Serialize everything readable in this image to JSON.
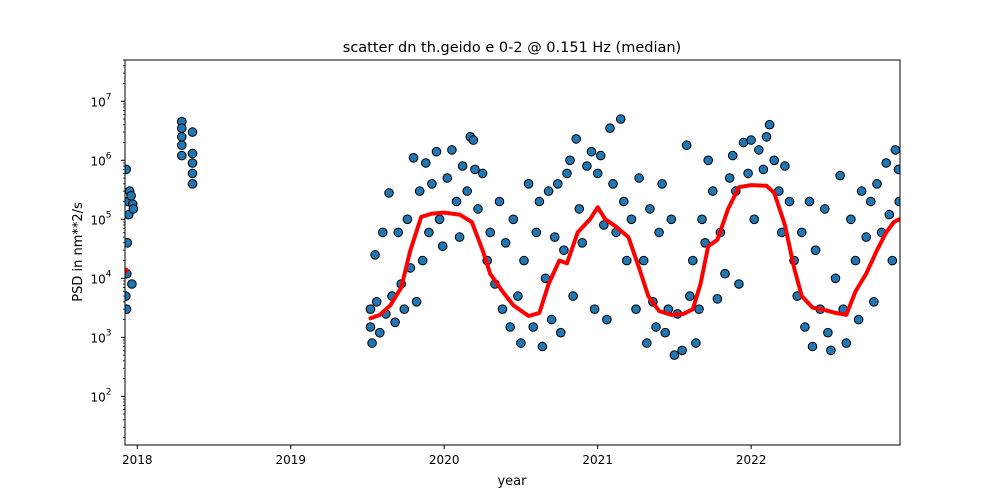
{
  "chart_data": {
    "type": "scatter",
    "title": "scatter dn th.geido e 0-2 @ 0.151 Hz (median)",
    "xlabel": "year",
    "ylabel": "PSD in nm**2/s",
    "yscale": "log",
    "xlim": [
      2017.92,
      2022.97
    ],
    "ylim": [
      15,
      50000000
    ],
    "grid": false,
    "x_ticks": [
      {
        "value": 2018,
        "label": "2018"
      },
      {
        "value": 2019,
        "label": "2019"
      },
      {
        "value": 2020,
        "label": "2020"
      },
      {
        "value": 2021,
        "label": "2021"
      },
      {
        "value": 2022,
        "label": "2022"
      }
    ],
    "y_ticks": [
      {
        "value": 100,
        "base": "10",
        "exp": "2"
      },
      {
        "value": 1000,
        "base": "10",
        "exp": "3"
      },
      {
        "value": 10000,
        "base": "10",
        "exp": "4"
      },
      {
        "value": 100000,
        "base": "10",
        "exp": "5"
      },
      {
        "value": 1000000,
        "base": "10",
        "exp": "6"
      },
      {
        "value": 10000000,
        "base": "10",
        "exp": "7"
      }
    ],
    "scatter_style": {
      "fill": "#1f77b4",
      "edge": "#000000"
    },
    "median_style": {
      "color": "#ff0000"
    },
    "scatter_points": [
      [
        2017.925,
        5000
      ],
      [
        2017.93,
        3000
      ],
      [
        2017.935,
        40000
      ],
      [
        2017.94,
        200000
      ],
      [
        2017.945,
        120000
      ],
      [
        2017.95,
        300000
      ],
      [
        2017.96,
        250000
      ],
      [
        2017.965,
        8000
      ],
      [
        2017.97,
        180000
      ],
      [
        2017.975,
        150000
      ],
      [
        2017.928,
        700000
      ],
      [
        2017.932,
        12000
      ],
      [
        2018.29,
        4500000
      ],
      [
        2018.29,
        3500000
      ],
      [
        2018.29,
        2500000
      ],
      [
        2018.29,
        1800000
      ],
      [
        2018.29,
        1200000
      ],
      [
        2018.36,
        3000000
      ],
      [
        2018.36,
        1300000
      ],
      [
        2018.36,
        900000
      ],
      [
        2018.36,
        600000
      ],
      [
        2018.36,
        400000
      ],
      [
        2019.52,
        3000
      ],
      [
        2019.52,
        1500
      ],
      [
        2019.53,
        800
      ],
      [
        2019.55,
        25000
      ],
      [
        2019.56,
        4000
      ],
      [
        2019.58,
        1200
      ],
      [
        2019.6,
        60000
      ],
      [
        2019.62,
        2500
      ],
      [
        2019.64,
        280000
      ],
      [
        2019.66,
        5000
      ],
      [
        2019.68,
        1800
      ],
      [
        2019.7,
        60000
      ],
      [
        2019.72,
        8000
      ],
      [
        2019.74,
        3000
      ],
      [
        2019.76,
        100000
      ],
      [
        2019.78,
        15000
      ],
      [
        2019.8,
        1100000
      ],
      [
        2019.82,
        4000
      ],
      [
        2019.84,
        300000
      ],
      [
        2019.86,
        20000
      ],
      [
        2019.88,
        900000
      ],
      [
        2019.9,
        60000
      ],
      [
        2019.92,
        400000
      ],
      [
        2019.95,
        1400000
      ],
      [
        2019.97,
        100000
      ],
      [
        2019.99,
        35000
      ],
      [
        2020.02,
        500000
      ],
      [
        2020.05,
        1500000
      ],
      [
        2020.08,
        200000
      ],
      [
        2020.1,
        50000
      ],
      [
        2020.12,
        800000
      ],
      [
        2020.15,
        300000
      ],
      [
        2020.17,
        2500000
      ],
      [
        2020.19,
        2200000
      ],
      [
        2020.2,
        700000
      ],
      [
        2020.22,
        150000
      ],
      [
        2020.25,
        600000
      ],
      [
        2020.28,
        20000
      ],
      [
        2020.3,
        60000
      ],
      [
        2020.33,
        8000
      ],
      [
        2020.36,
        200000
      ],
      [
        2020.38,
        3000
      ],
      [
        2020.4,
        40000
      ],
      [
        2020.43,
        1500
      ],
      [
        2020.45,
        100000
      ],
      [
        2020.48,
        5000
      ],
      [
        2020.5,
        800
      ],
      [
        2020.52,
        20000
      ],
      [
        2020.55,
        400000
      ],
      [
        2020.58,
        1500
      ],
      [
        2020.6,
        60000
      ],
      [
        2020.62,
        200000
      ],
      [
        2020.64,
        700
      ],
      [
        2020.66,
        10000
      ],
      [
        2020.68,
        300000
      ],
      [
        2020.7,
        2000
      ],
      [
        2020.72,
        50000
      ],
      [
        2020.74,
        400000
      ],
      [
        2020.76,
        1200
      ],
      [
        2020.78,
        30000
      ],
      [
        2020.8,
        600000
      ],
      [
        2020.82,
        1000000
      ],
      [
        2020.84,
        5000
      ],
      [
        2020.86,
        2300000
      ],
      [
        2020.88,
        150000
      ],
      [
        2020.9,
        40000
      ],
      [
        2020.93,
        800000
      ],
      [
        2020.96,
        1400000
      ],
      [
        2020.98,
        3000
      ],
      [
        2021.0,
        600000
      ],
      [
        2021.02,
        1200000
      ],
      [
        2021.04,
        80000
      ],
      [
        2021.06,
        2000
      ],
      [
        2021.08,
        3500000
      ],
      [
        2021.1,
        400000
      ],
      [
        2021.12,
        60000
      ],
      [
        2021.15,
        5000000
      ],
      [
        2021.17,
        200000
      ],
      [
        2021.19,
        20000
      ],
      [
        2021.22,
        100000
      ],
      [
        2021.25,
        3000
      ],
      [
        2021.27,
        500000
      ],
      [
        2021.3,
        20000
      ],
      [
        2021.32,
        800
      ],
      [
        2021.34,
        150000
      ],
      [
        2021.36,
        4000
      ],
      [
        2021.38,
        1500
      ],
      [
        2021.4,
        60000
      ],
      [
        2021.42,
        400000
      ],
      [
        2021.44,
        1200
      ],
      [
        2021.46,
        3000
      ],
      [
        2021.48,
        100000
      ],
      [
        2021.5,
        500
      ],
      [
        2021.52,
        2500
      ],
      [
        2021.55,
        600
      ],
      [
        2021.58,
        1800000
      ],
      [
        2021.6,
        5000
      ],
      [
        2021.62,
        20000
      ],
      [
        2021.64,
        800
      ],
      [
        2021.66,
        3000
      ],
      [
        2021.68,
        100000
      ],
      [
        2021.7,
        40000
      ],
      [
        2021.72,
        1000000
      ],
      [
        2021.75,
        300000
      ],
      [
        2021.78,
        4500
      ],
      [
        2021.8,
        60000
      ],
      [
        2021.83,
        12000
      ],
      [
        2021.86,
        500000
      ],
      [
        2021.88,
        1200000
      ],
      [
        2021.9,
        300000
      ],
      [
        2021.92,
        8000
      ],
      [
        2021.95,
        2000000
      ],
      [
        2021.98,
        600000
      ],
      [
        2022.0,
        2200000
      ],
      [
        2022.02,
        100000
      ],
      [
        2022.05,
        1500000
      ],
      [
        2022.08,
        700000
      ],
      [
        2022.1,
        2500000
      ],
      [
        2022.12,
        4000000
      ],
      [
        2022.15,
        1000000
      ],
      [
        2022.18,
        300000
      ],
      [
        2022.2,
        60000
      ],
      [
        2022.22,
        800000
      ],
      [
        2022.25,
        200000
      ],
      [
        2022.28,
        20000
      ],
      [
        2022.3,
        5000
      ],
      [
        2022.33,
        60000
      ],
      [
        2022.35,
        1500
      ],
      [
        2022.38,
        200000
      ],
      [
        2022.4,
        700
      ],
      [
        2022.42,
        30000
      ],
      [
        2022.45,
        3000
      ],
      [
        2022.48,
        150000
      ],
      [
        2022.5,
        1200
      ],
      [
        2022.52,
        600
      ],
      [
        2022.55,
        10000
      ],
      [
        2022.58,
        550000
      ],
      [
        2022.6,
        3000
      ],
      [
        2022.62,
        800
      ],
      [
        2022.65,
        100000
      ],
      [
        2022.68,
        20000
      ],
      [
        2022.7,
        2000
      ],
      [
        2022.72,
        300000
      ],
      [
        2022.75,
        50000
      ],
      [
        2022.78,
        200000
      ],
      [
        2022.8,
        4000
      ],
      [
        2022.82,
        400000
      ],
      [
        2022.85,
        60000
      ],
      [
        2022.88,
        900000
      ],
      [
        2022.9,
        120000
      ],
      [
        2022.92,
        20000
      ],
      [
        2022.94,
        1500000
      ],
      [
        2022.96,
        700000
      ],
      [
        2022.965,
        200000
      ]
    ],
    "median_series": [
      [
        2017.925,
        13000
      ],
      [
        2017.93,
        14000
      ],
      [
        2019.52,
        2100
      ],
      [
        2019.58,
        2400
      ],
      [
        2019.65,
        3500
      ],
      [
        2019.72,
        7000
      ],
      [
        2019.78,
        30000
      ],
      [
        2019.85,
        110000
      ],
      [
        2019.92,
        125000
      ],
      [
        2020.0,
        130000
      ],
      [
        2020.1,
        120000
      ],
      [
        2020.18,
        90000
      ],
      [
        2020.25,
        30000
      ],
      [
        2020.3,
        12000
      ],
      [
        2020.38,
        6000
      ],
      [
        2020.45,
        3500
      ],
      [
        2020.55,
        2300
      ],
      [
        2020.62,
        2600
      ],
      [
        2020.68,
        8000
      ],
      [
        2020.75,
        20000
      ],
      [
        2020.8,
        18000
      ],
      [
        2020.87,
        60000
      ],
      [
        2020.95,
        100000
      ],
      [
        2021.0,
        160000
      ],
      [
        2021.05,
        100000
      ],
      [
        2021.12,
        75000
      ],
      [
        2021.2,
        50000
      ],
      [
        2021.27,
        15000
      ],
      [
        2021.33,
        5000
      ],
      [
        2021.4,
        2800
      ],
      [
        2021.48,
        2400
      ],
      [
        2021.56,
        2500
      ],
      [
        2021.62,
        3000
      ],
      [
        2021.67,
        8000
      ],
      [
        2021.72,
        35000
      ],
      [
        2021.78,
        45000
      ],
      [
        2021.85,
        150000
      ],
      [
        2021.92,
        350000
      ],
      [
        2022.0,
        380000
      ],
      [
        2022.1,
        370000
      ],
      [
        2022.15,
        280000
      ],
      [
        2022.22,
        80000
      ],
      [
        2022.28,
        15000
      ],
      [
        2022.33,
        5000
      ],
      [
        2022.4,
        3200
      ],
      [
        2022.48,
        2900
      ],
      [
        2022.55,
        2600
      ],
      [
        2022.62,
        2400
      ],
      [
        2022.68,
        6000
      ],
      [
        2022.75,
        12000
      ],
      [
        2022.82,
        30000
      ],
      [
        2022.88,
        60000
      ],
      [
        2022.93,
        90000
      ],
      [
        2022.965,
        100000
      ]
    ]
  }
}
